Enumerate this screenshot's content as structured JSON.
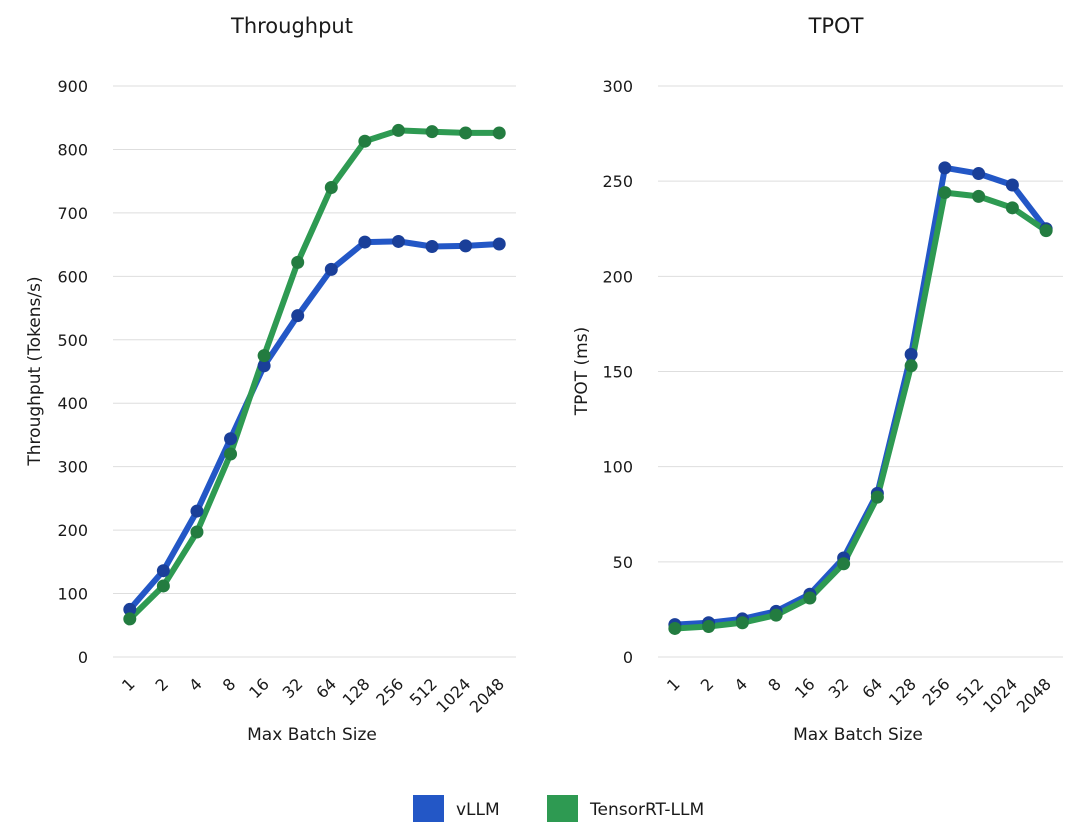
{
  "colors": {
    "vllm": "#2357c6",
    "vllm_marker": "#1a3f99",
    "trt": "#2e9a52",
    "trt_marker": "#237c40"
  },
  "legend": [
    {
      "key": "vllm",
      "label": "vLLM"
    },
    {
      "key": "trt",
      "label": "TensorRT-LLM"
    }
  ],
  "chart_data": [
    {
      "type": "line",
      "title": "Throughput",
      "xlabel": "Max Batch Size",
      "ylabel": "Throughput (Tokens/s)",
      "ylim": [
        0,
        900
      ],
      "yticks": [
        0,
        100,
        200,
        300,
        400,
        500,
        600,
        700,
        800,
        900
      ],
      "grid": true,
      "legend_position": "bottom",
      "categories": [
        "1",
        "2",
        "4",
        "8",
        "16",
        "32",
        "64",
        "128",
        "256",
        "512",
        "1024",
        "2048"
      ],
      "series": [
        {
          "name": "vLLM",
          "values": [
            75,
            136,
            230,
            344,
            459,
            538,
            611,
            654,
            655,
            647,
            648,
            651
          ]
        },
        {
          "name": "TensorRT-LLM",
          "values": [
            60,
            112,
            197,
            320,
            475,
            622,
            740,
            813,
            830,
            828,
            826,
            826
          ]
        }
      ]
    },
    {
      "type": "line",
      "title": "TPOT",
      "xlabel": "Max Batch Size",
      "ylabel": "TPOT (ms)",
      "ylim": [
        0,
        300
      ],
      "yticks": [
        0,
        50,
        100,
        150,
        200,
        250,
        300
      ],
      "grid": true,
      "legend_position": "bottom",
      "categories": [
        "1",
        "2",
        "4",
        "8",
        "16",
        "32",
        "64",
        "128",
        "256",
        "512",
        "1024",
        "2048"
      ],
      "series": [
        {
          "name": "vLLM",
          "values": [
            17,
            18,
            20,
            24,
            33,
            52,
            86,
            159,
            257,
            254,
            248,
            225
          ]
        },
        {
          "name": "TensorRT-LLM",
          "values": [
            15,
            16,
            18,
            22,
            31,
            49,
            84,
            153,
            244,
            242,
            236,
            224
          ]
        }
      ]
    }
  ]
}
